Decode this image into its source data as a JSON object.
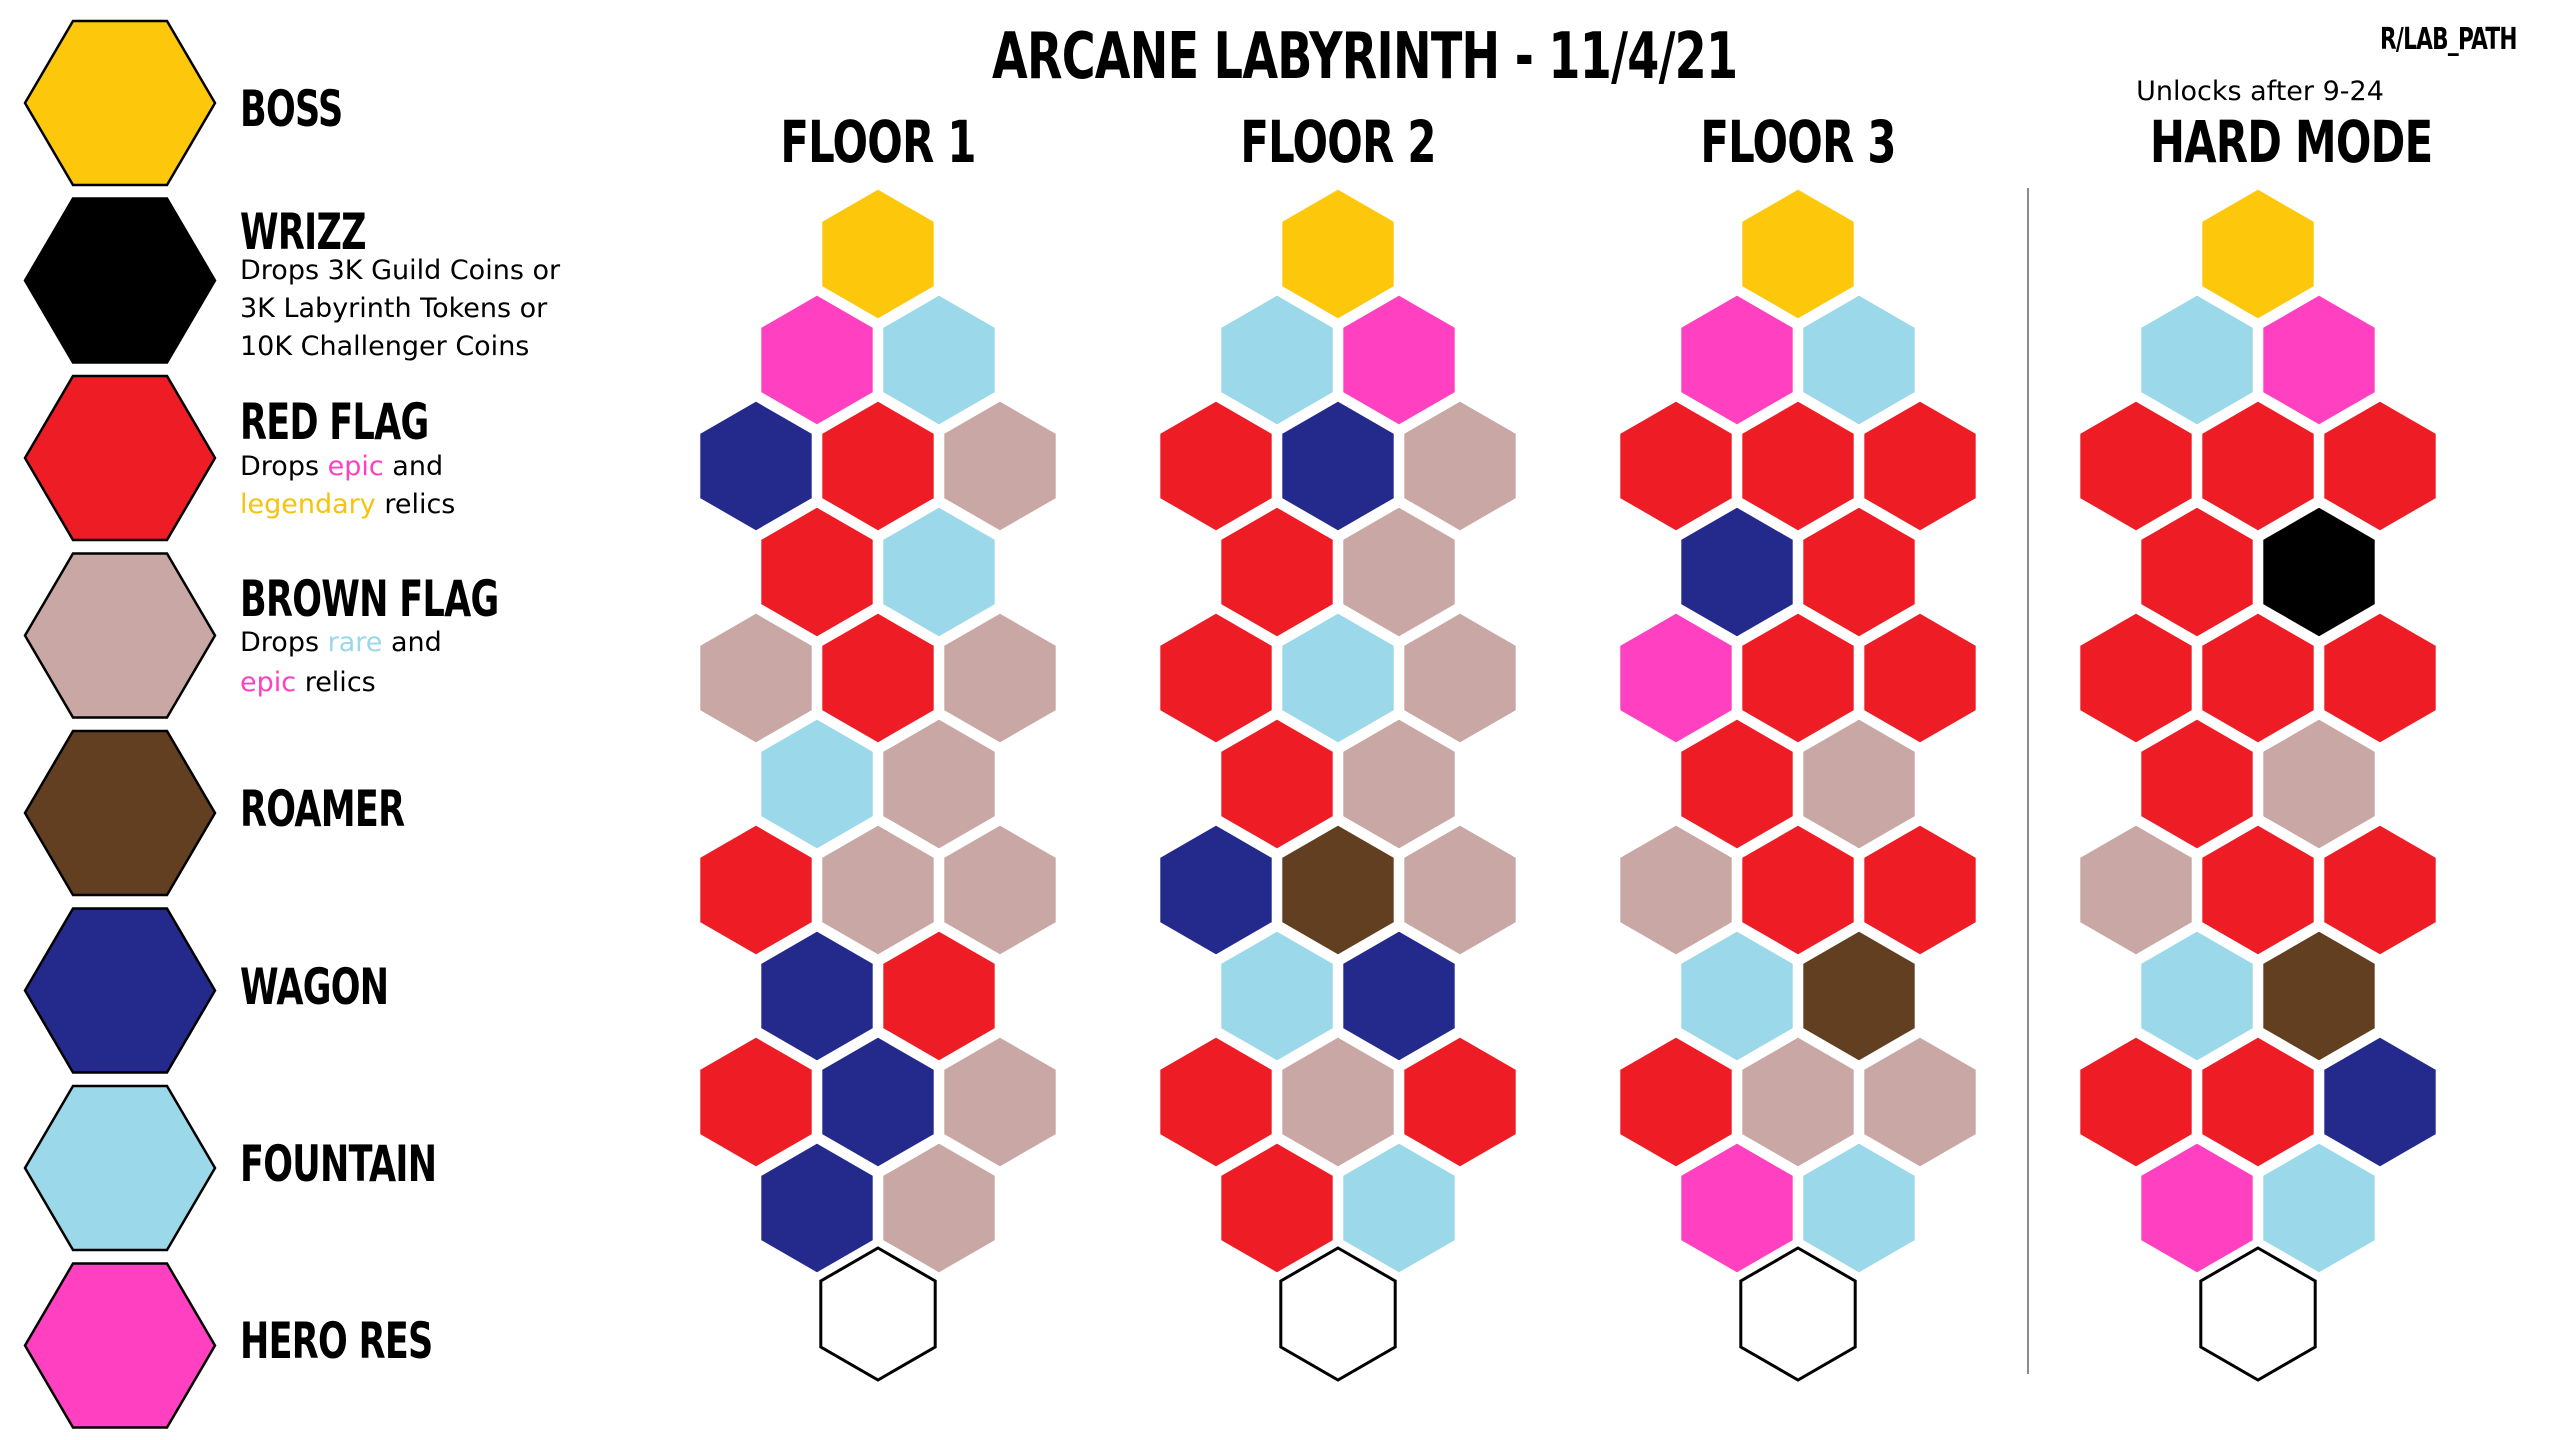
{
  "title": "ARCANE LABYRINTH - 11/4/21",
  "credit": "R/LAB_PATH",
  "colors": {
    "boss": "#FDC70B",
    "wrizz": "#000000",
    "red": "#EE1C24",
    "brown": "#C8A7A5",
    "roamer": "#633F21",
    "wagon": "#232A8B",
    "fountain": "#9AD8EA",
    "hero": "#FF40C0",
    "empty": "#FFFFFF"
  },
  "legend": [
    {
      "key": "boss",
      "name": "BOSS",
      "icon": "yellow-hexagon"
    },
    {
      "key": "wrizz",
      "name": "WRIZZ",
      "icon": "black-hexagon",
      "desc_lines": [
        "Drops 3K Guild Coins or",
        "3K Labyrinth Tokens or",
        "10K Challenger Coins"
      ]
    },
    {
      "key": "red",
      "name": "RED FLAG",
      "icon": "red-hexagon",
      "desc_a": "Drops ",
      "desc_hl1": "epic",
      "desc_b": " and",
      "desc_hl2": "legendary",
      "desc_c": " relics"
    },
    {
      "key": "brown",
      "name": "BROWN FLAG",
      "icon": "tan-hexagon",
      "desc_a": "Drops ",
      "desc_hl1": "rare",
      "desc_b": " and",
      "desc_hl2": "epic",
      "desc_c": " relics"
    },
    {
      "key": "roamer",
      "name": "ROAMER",
      "icon": "brown-hexagon"
    },
    {
      "key": "wagon",
      "name": "WAGON",
      "icon": "navy-hexagon"
    },
    {
      "key": "fountain",
      "name": "FOUNTAIN",
      "icon": "light-blue-hexagon"
    },
    {
      "key": "hero",
      "name": "HERO RES",
      "icon": "pink-hexagon"
    }
  ],
  "floors": [
    {
      "name": "FLOOR 1",
      "rows": [
        [
          "boss"
        ],
        [
          "hero",
          "fountain"
        ],
        [
          "wagon",
          "red",
          "brown"
        ],
        [
          "red",
          "fountain"
        ],
        [
          "brown",
          "red",
          "brown"
        ],
        [
          "fountain",
          "brown"
        ],
        [
          "red",
          "brown",
          "brown"
        ],
        [
          "wagon",
          "red"
        ],
        [
          "red",
          "wagon",
          "brown"
        ],
        [
          "wagon",
          "brown"
        ],
        [
          "empty"
        ]
      ]
    },
    {
      "name": "FLOOR 2",
      "rows": [
        [
          "boss"
        ],
        [
          "fountain",
          "hero"
        ],
        [
          "red",
          "wagon",
          "brown"
        ],
        [
          "red",
          "brown"
        ],
        [
          "red",
          "fountain",
          "brown"
        ],
        [
          "red",
          "brown"
        ],
        [
          "wagon",
          "roamer",
          "brown"
        ],
        [
          "fountain",
          "wagon"
        ],
        [
          "red",
          "brown",
          "red"
        ],
        [
          "red",
          "fountain"
        ],
        [
          "empty"
        ]
      ]
    },
    {
      "name": "FLOOR 3",
      "rows": [
        [
          "boss"
        ],
        [
          "hero",
          "fountain"
        ],
        [
          "red",
          "red",
          "red"
        ],
        [
          "wagon",
          "red"
        ],
        [
          "hero",
          "red",
          "red"
        ],
        [
          "red",
          "brown"
        ],
        [
          "brown",
          "red",
          "red"
        ],
        [
          "fountain",
          "roamer"
        ],
        [
          "red",
          "brown",
          "brown"
        ],
        [
          "hero",
          "fountain"
        ],
        [
          "empty"
        ]
      ]
    },
    {
      "name": "HARD MODE",
      "note": "Unlocks after 9-24",
      "rows": [
        [
          "boss"
        ],
        [
          "fountain",
          "hero"
        ],
        [
          "red",
          "red",
          "red"
        ],
        [
          "red",
          "wrizz"
        ],
        [
          "red",
          "red",
          "red"
        ],
        [
          "red",
          "brown"
        ],
        [
          "brown",
          "red",
          "red"
        ],
        [
          "fountain",
          "roamer"
        ],
        [
          "red",
          "red",
          "wagon"
        ],
        [
          "hero",
          "fountain"
        ],
        [
          "empty"
        ]
      ]
    }
  ]
}
